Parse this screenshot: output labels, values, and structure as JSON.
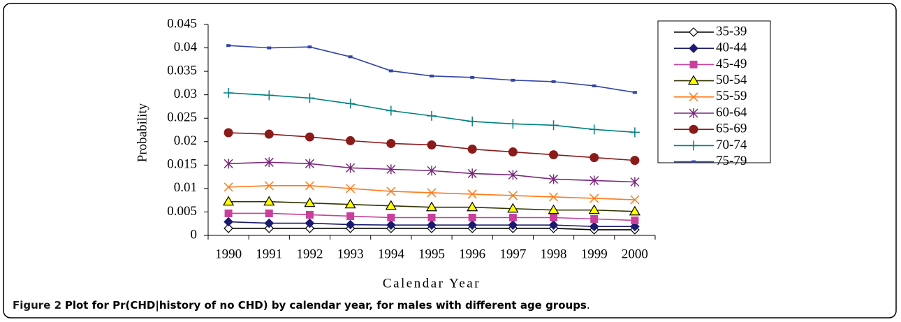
{
  "chart_data": {
    "type": "line",
    "categories": [
      "1990",
      "1991",
      "1992",
      "1993",
      "1994",
      "1995",
      "1996",
      "1997",
      "1998",
      "1999",
      "2000"
    ],
    "x_label": "Calendar Year",
    "y_label": "Probability",
    "ylim": [
      0,
      0.045
    ],
    "yticks": [
      0,
      0.005,
      0.01,
      0.015,
      0.02,
      0.025,
      0.03,
      0.035,
      0.04,
      0.045
    ],
    "series": [
      {
        "name": "35-39",
        "color": "#000000",
        "marker": "diamond",
        "marker_fill": "#ffffff",
        "values": [
          0.0015,
          0.0015,
          0.0015,
          0.0015,
          0.0015,
          0.0015,
          0.0015,
          0.0015,
          0.0015,
          0.0012,
          0.0012
        ]
      },
      {
        "name": "40-44",
        "color": "#1a1a6e",
        "marker": "diamond",
        "marker_fill": "#1a1a6e",
        "values": [
          0.0029,
          0.0026,
          0.0026,
          0.0023,
          0.0022,
          0.0022,
          0.0022,
          0.0022,
          0.0022,
          0.0019,
          0.0019
        ]
      },
      {
        "name": "45-49",
        "color": "#c8409c",
        "marker": "square",
        "marker_fill": "#c8409c",
        "values": [
          0.0047,
          0.0047,
          0.0044,
          0.0041,
          0.0038,
          0.0038,
          0.0038,
          0.0038,
          0.0038,
          0.0035,
          0.0032
        ]
      },
      {
        "name": "50-54",
        "color": "#333300",
        "marker": "triangle",
        "marker_fill": "#ffff00",
        "values": [
          0.0072,
          0.0072,
          0.0069,
          0.0066,
          0.0063,
          0.006,
          0.006,
          0.0057,
          0.0054,
          0.0054,
          0.0051
        ]
      },
      {
        "name": "55-59",
        "color": "#ff7a1a",
        "marker": "x",
        "values": [
          0.0103,
          0.0106,
          0.0106,
          0.01,
          0.0094,
          0.0091,
          0.0088,
          0.0085,
          0.0082,
          0.0079,
          0.0076
        ]
      },
      {
        "name": "60-64",
        "color": "#7a2a7a",
        "marker": "star",
        "values": [
          0.0153,
          0.0156,
          0.0153,
          0.0144,
          0.0141,
          0.0138,
          0.0132,
          0.0129,
          0.012,
          0.0117,
          0.0114
        ]
      },
      {
        "name": "65-69",
        "color": "#8b1a1a",
        "marker": "circle",
        "marker_fill": "#8b1a1a",
        "values": [
          0.0219,
          0.0216,
          0.021,
          0.0202,
          0.0196,
          0.0193,
          0.0184,
          0.0178,
          0.0172,
          0.0166,
          0.016
        ]
      },
      {
        "name": "70-74",
        "color": "#008080",
        "marker": "plus",
        "values": [
          0.0304,
          0.0299,
          0.0293,
          0.0281,
          0.0266,
          0.0255,
          0.0243,
          0.0238,
          0.0235,
          0.0226,
          0.022
        ]
      },
      {
        "name": "75-79",
        "color": "#3344aa",
        "marker": "dash",
        "marker_fill": "#3344aa",
        "values": [
          0.0405,
          0.04,
          0.0402,
          0.0381,
          0.0351,
          0.034,
          0.0337,
          0.0331,
          0.0328,
          0.0319,
          0.0305
        ]
      }
    ],
    "caption": {
      "label": "Figure 2",
      "text": "Plot for Pr(CHD|history of no CHD) by calendar year, for males with different age groups",
      "end": "."
    }
  }
}
